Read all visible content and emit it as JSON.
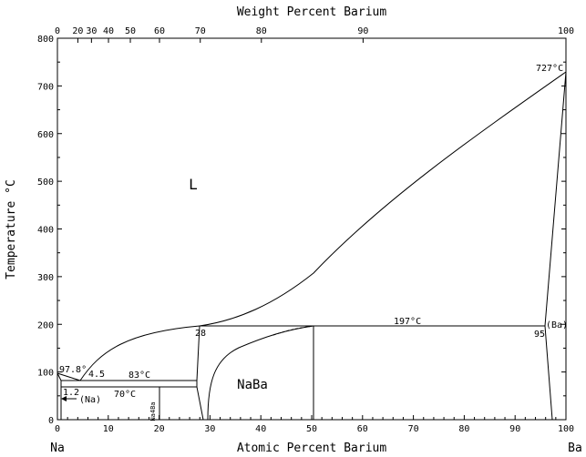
{
  "axes": {
    "bottom_title": "Atomic Percent Barium",
    "top_title": "Weight Percent Barium",
    "left_title": "Temperature °C",
    "left_element": "Na",
    "right_element": "Ba",
    "bottom_ticks": [
      "0",
      "10",
      "20",
      "30",
      "40",
      "50",
      "60",
      "70",
      "80",
      "90",
      "100"
    ],
    "top_ticks": [
      "0",
      "20",
      "30",
      "40",
      "50",
      "60",
      "70",
      "80",
      "90",
      "100"
    ],
    "left_ticks": [
      "0",
      "100",
      "200",
      "300",
      "400",
      "500",
      "600",
      "700",
      "800"
    ],
    "x_range_at_pct": [
      0,
      100
    ],
    "y_range_c": [
      0,
      800
    ]
  },
  "phases": {
    "liquid": "L",
    "compound": "NaBa",
    "na_solid": "(Na)",
    "ba_solid": "(Ba)",
    "na4ba": "Na4Ba"
  },
  "annotations": {
    "na_melting": "97.8°",
    "ba_melting": "727°C",
    "eutectic_na": "4.5",
    "peritectic_83": "83°C",
    "eutectic_70": "70°C",
    "solubility_na": "1.2",
    "peritectic_28": "28",
    "eutectic_197": "197°C",
    "solubility_ba": "95"
  }
}
